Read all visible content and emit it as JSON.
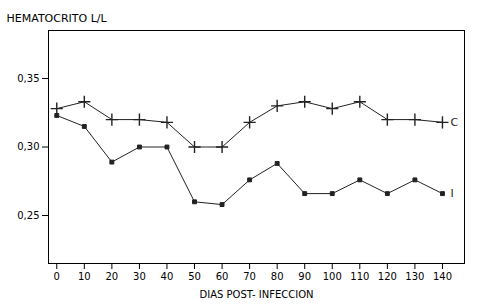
{
  "chart_data": {
    "type": "line",
    "xlabel": "DIAS POST- INFECCION",
    "ylabel": "HEMATOCRITO L/L",
    "x": [
      0,
      10,
      20,
      30,
      40,
      50,
      60,
      70,
      80,
      90,
      100,
      110,
      120,
      130,
      140
    ],
    "series": [
      {
        "name": "C",
        "color": "#222222",
        "marker": "plus",
        "values": [
          0.328,
          0.333,
          0.32,
          0.32,
          0.318,
          0.3,
          0.3,
          0.318,
          0.33,
          0.333,
          0.328,
          0.333,
          0.32,
          0.32,
          0.318
        ]
      },
      {
        "name": "I",
        "color": "#222222",
        "marker": "square",
        "values": [
          0.323,
          0.315,
          0.289,
          0.3,
          0.3,
          0.26,
          0.258,
          0.276,
          0.288,
          0.266,
          0.266,
          0.276,
          0.266,
          0.276,
          0.266
        ]
      }
    ],
    "xlim": [
      -3,
      148
    ],
    "ylim": [
      0.215,
      0.385
    ],
    "xticks": [
      0,
      10,
      20,
      30,
      40,
      50,
      60,
      70,
      80,
      90,
      100,
      110,
      120,
      130,
      140
    ],
    "yticks": [
      {
        "value": 0.25,
        "label": "0,25"
      },
      {
        "value": 0.3,
        "label": "0,30"
      },
      {
        "value": 0.35,
        "label": "0,35"
      }
    ]
  }
}
